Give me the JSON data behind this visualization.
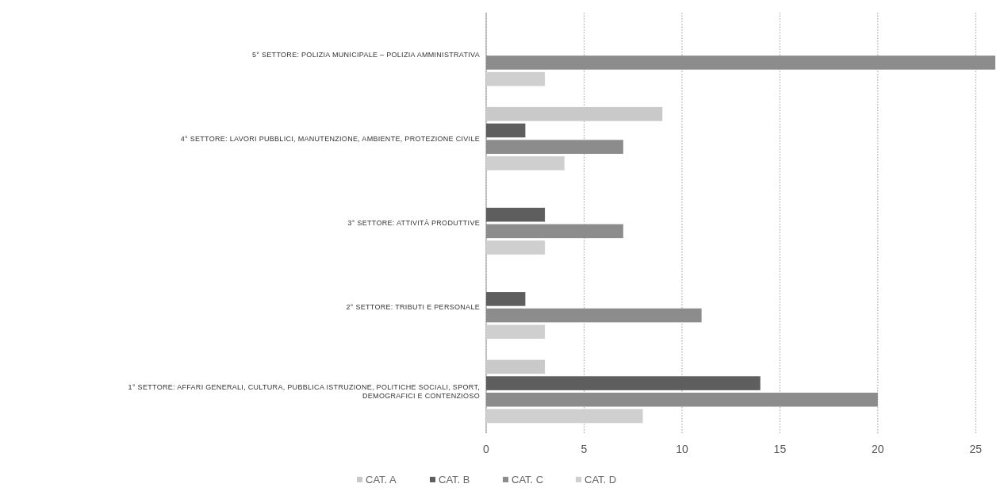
{
  "chart_data": {
    "type": "bar",
    "orientation": "horizontal",
    "categories": [
      "5° SETTORE: POLIZIA MUNICIPALE – POLIZIA AMMINISTRATIVA",
      "4° SETTORE: LAVORI PUBBLICI, MANUTENZIONE, AMBIENTE, PROTEZIONE CIVILE",
      "3° SETTORE: ATTIVITÀ PRODUTTIVE",
      "2° SETTORE: TRIBUTI E PERSONALE",
      "1° SETTORE: AFFARI GENERALI, CULTURA, PUBBLICA ISTRUZIONE, POLITICHE SOCIALI, SPORT, DEMOGRAFICI E CONTENZIOSO"
    ],
    "series": [
      {
        "name": "CAT. A",
        "color": "#c9c9c9",
        "values": [
          null,
          9,
          null,
          null,
          3
        ]
      },
      {
        "name": "CAT. B",
        "color": "#5e5e5e",
        "values": [
          null,
          2,
          3,
          2,
          14
        ]
      },
      {
        "name": "CAT. C",
        "color": "#8c8c8c",
        "values": [
          26,
          7,
          7,
          11,
          20
        ]
      },
      {
        "name": "CAT. D",
        "color": "#cfcfcf",
        "values": [
          3,
          4,
          3,
          3,
          8
        ]
      }
    ],
    "xlim": [
      0,
      26
    ],
    "xticks": [
      0,
      5,
      10,
      15,
      20,
      25
    ],
    "grid": "x",
    "legend": "bottom"
  }
}
